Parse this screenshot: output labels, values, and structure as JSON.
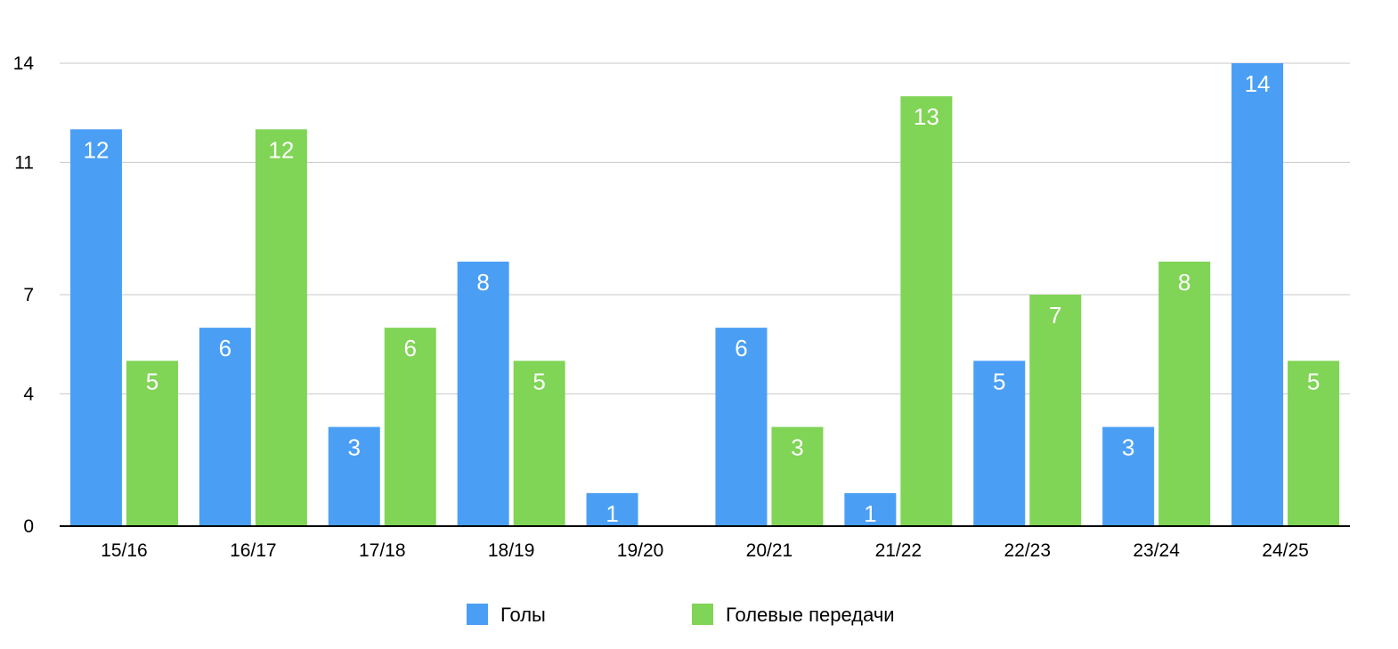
{
  "chart_data": {
    "type": "bar",
    "title": "",
    "xlabel": "",
    "ylabel": "",
    "categories": [
      "15/16",
      "16/17",
      "17/18",
      "18/19",
      "19/20",
      "20/21",
      "21/22",
      "22/23",
      "23/24",
      "24/25"
    ],
    "series": [
      {
        "name": "Голы",
        "color": "#4a9ff5",
        "values": [
          12,
          6,
          3,
          8,
          1,
          6,
          1,
          5,
          3,
          14
        ]
      },
      {
        "name": "Голевые передачи",
        "color": "#80d456",
        "values": [
          5,
          12,
          6,
          5,
          0,
          3,
          13,
          7,
          8,
          5
        ]
      }
    ],
    "ylim": [
      0,
      14
    ],
    "yticks": [
      "0",
      "4",
      "7",
      "11",
      "14"
    ],
    "grid": true,
    "legend_position": "bottom",
    "data_labels": true
  }
}
